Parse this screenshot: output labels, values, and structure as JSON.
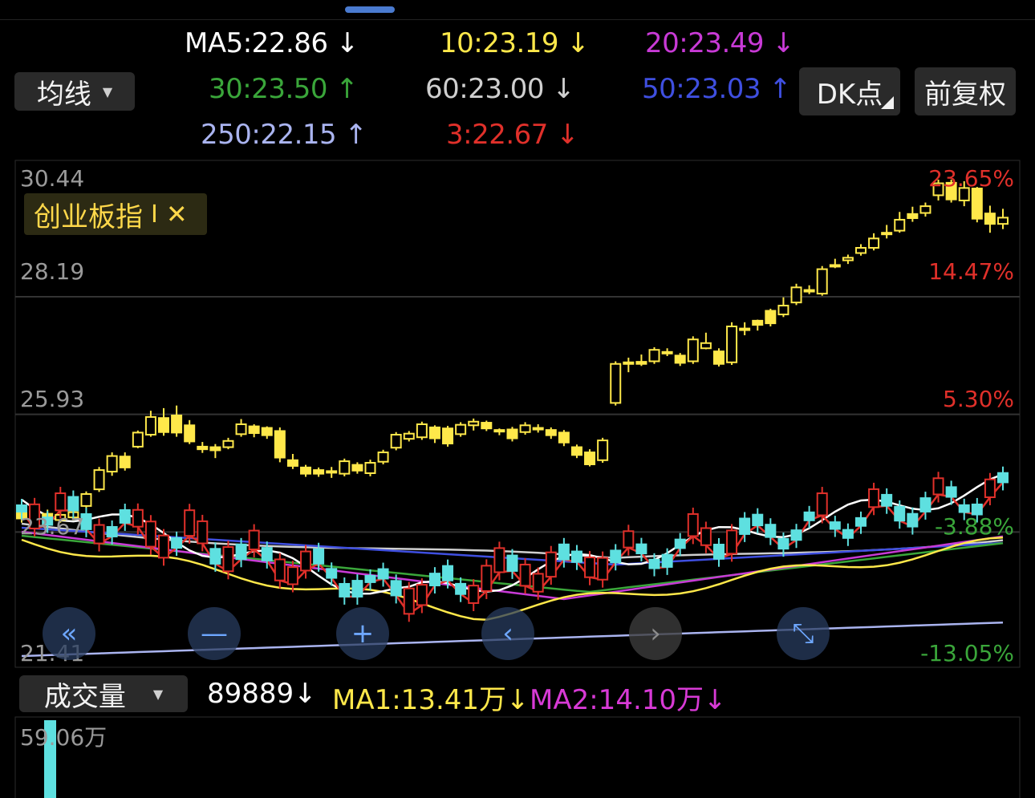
{
  "ma_panel": {
    "selector_label": "均线",
    "items": [
      {
        "text": "MA5:22.86",
        "arrow": "↓",
        "color": "#ffffff"
      },
      {
        "text": "10:23.19",
        "arrow": "↓",
        "color": "#ffe84a"
      },
      {
        "text": "20:23.49",
        "arrow": "↓",
        "color": "#c83ad6"
      },
      {
        "text": "30:23.50",
        "arrow": "↑",
        "color": "#3aa63a"
      },
      {
        "text": "60:23.00",
        "arrow": "↓",
        "color": "#cfcfcf"
      },
      {
        "text": "50:23.03",
        "arrow": "↑",
        "color": "#3f4fe0"
      },
      {
        "text": "250:22.15",
        "arrow": "↑",
        "color": "#aab4f0"
      },
      {
        "text": "3:22.67",
        "arrow": "↓",
        "color": "#e0302a"
      }
    ],
    "dk_button": "DK点",
    "fq_button": "前复权"
  },
  "price_chart": {
    "index_badge": "创业板指",
    "badge_sep": "I",
    "badge_close": "✕",
    "y_left_labels": [
      "30.44",
      "28.19",
      "25.93",
      "23.67",
      "21.41"
    ],
    "y_right_labels": [
      "23.65%",
      "14.47%",
      "5.30%",
      "-3.88%",
      "-13.05%"
    ]
  },
  "nav": {
    "icons": [
      "rewind-icon",
      "zoom-out-icon",
      "zoom-in-icon",
      "prev-icon",
      "next-icon",
      "fullscreen-icon"
    ]
  },
  "volume_panel": {
    "selector_label": "成交量",
    "value": "89889",
    "value_arrow": "↓",
    "ma1": "MA1:13.41万",
    "ma1_arrow": "↓",
    "ma2": "MA2:14.10万",
    "ma2_arrow": "↓",
    "max_label": "59.06万"
  },
  "colors": {
    "up": "#ffe84a",
    "down": "#ffe84a",
    "up_lower": "#e0302a",
    "down_lower": "#5ee0e0",
    "red_pct": "#e0302a",
    "green_pct": "#3aa63a"
  },
  "chart_data": [
    {
      "type": "candlestick",
      "series_name": "创业板指",
      "ylim": [
        21.41,
        30.44
      ],
      "y_ticks": [
        30.44,
        28.19,
        25.93,
        23.67,
        21.41
      ],
      "pct_ticks": [
        "23.65%",
        "14.47%",
        "5.30%",
        "-3.88%",
        "-13.05%"
      ],
      "candles": [
        [
          24.04,
          23.93,
          24.1,
          23.85
        ],
        [
          24.01,
          24.06,
          24.15,
          23.95
        ],
        [
          24.02,
          23.95,
          24.1,
          23.9
        ],
        [
          23.9,
          24.0,
          24.08,
          23.85
        ],
        [
          23.95,
          24.05,
          24.12,
          23.9
        ],
        [
          24.17,
          24.4,
          24.45,
          24.1
        ],
        [
          24.49,
          24.86,
          24.92,
          24.44
        ],
        [
          24.83,
          25.13,
          25.2,
          24.75
        ],
        [
          25.12,
          24.91,
          25.2,
          24.85
        ],
        [
          25.31,
          25.58,
          25.62,
          25.28
        ],
        [
          25.54,
          25.88,
          26.0,
          25.5
        ],
        [
          25.86,
          25.59,
          26.05,
          25.52
        ],
        [
          25.91,
          25.58,
          26.1,
          25.5
        ],
        [
          25.72,
          25.41,
          25.82,
          25.36
        ],
        [
          25.31,
          25.26,
          25.4,
          25.19
        ],
        [
          25.3,
          25.24,
          25.36,
          25.09
        ],
        [
          25.3,
          25.42,
          25.48,
          25.26
        ],
        [
          25.55,
          25.74,
          25.84,
          25.5
        ],
        [
          25.7,
          25.57,
          25.74,
          25.49
        ],
        [
          25.67,
          25.53,
          25.7,
          25.46
        ],
        [
          25.61,
          25.1,
          25.68,
          25.01
        ],
        [
          25.05,
          24.94,
          25.17,
          24.88
        ],
        [
          24.91,
          24.79,
          24.96,
          24.73
        ],
        [
          24.86,
          24.79,
          24.91,
          24.73
        ],
        [
          24.84,
          24.82,
          24.92,
          24.71
        ],
        [
          24.79,
          25.03,
          25.08,
          24.74
        ],
        [
          24.96,
          24.85,
          25.01,
          24.79
        ],
        [
          24.8,
          25.0,
          25.06,
          24.74
        ],
        [
          25.02,
          25.2,
          25.25,
          24.97
        ],
        [
          25.29,
          25.54,
          25.59,
          25.24
        ],
        [
          25.46,
          25.56,
          25.61,
          25.41
        ],
        [
          25.49,
          25.74,
          25.79,
          25.44
        ],
        [
          25.68,
          25.47,
          25.72,
          25.38
        ],
        [
          25.66,
          25.37,
          25.71,
          25.31
        ],
        [
          25.55,
          25.73,
          25.78,
          25.5
        ],
        [
          25.72,
          25.79,
          25.85,
          25.62
        ],
        [
          25.77,
          25.66,
          25.81,
          25.61
        ],
        [
          25.6,
          25.63,
          25.66,
          25.53
        ],
        [
          25.64,
          25.47,
          25.69,
          25.41
        ],
        [
          25.59,
          25.72,
          25.78,
          25.54
        ],
        [
          25.64,
          25.67,
          25.74,
          25.58
        ],
        [
          25.63,
          25.53,
          25.68,
          25.46
        ],
        [
          25.58,
          25.39,
          25.63,
          25.32
        ],
        [
          25.3,
          25.15,
          25.35,
          25.09
        ],
        [
          25.2,
          24.97,
          25.26,
          24.93
        ],
        [
          25.05,
          25.43,
          25.48,
          25.0
        ],
        [
          26.15,
          26.9,
          26.95,
          26.1
        ],
        [
          26.9,
          26.93,
          27.02,
          26.74
        ],
        [
          26.94,
          26.9,
          27.08,
          26.86
        ],
        [
          26.95,
          27.17,
          27.22,
          26.9
        ],
        [
          27.13,
          27.13,
          27.2,
          27.05
        ],
        [
          27.06,
          26.92,
          27.11,
          26.86
        ],
        [
          26.95,
          27.37,
          27.43,
          26.9
        ],
        [
          27.2,
          27.3,
          27.5,
          27.18
        ],
        [
          27.14,
          26.9,
          27.2,
          26.85
        ],
        [
          26.93,
          27.62,
          27.7,
          26.88
        ],
        [
          27.55,
          27.58,
          27.7,
          27.45
        ],
        [
          27.73,
          27.65,
          27.75,
          27.54
        ],
        [
          27.92,
          27.68,
          27.96,
          27.62
        ],
        [
          27.85,
          28.02,
          28.18,
          27.8
        ],
        [
          28.08,
          28.37,
          28.44,
          28.03
        ],
        [
          28.32,
          28.3,
          28.41,
          28.24
        ],
        [
          28.25,
          28.72,
          28.78,
          28.21
        ],
        [
          28.77,
          28.8,
          28.92,
          28.74
        ],
        [
          28.89,
          28.94,
          29.0,
          28.82
        ],
        [
          29.03,
          29.13,
          29.2,
          28.98
        ],
        [
          29.13,
          29.31,
          29.41,
          29.08
        ],
        [
          29.42,
          29.41,
          29.57,
          29.31
        ],
        [
          29.46,
          29.67,
          29.82,
          29.42
        ],
        [
          29.78,
          29.7,
          29.92,
          29.63
        ],
        [
          29.8,
          29.93,
          30.0,
          29.73
        ],
        [
          30.14,
          30.37,
          30.44,
          30.04
        ],
        [
          30.38,
          30.06,
          30.44,
          30.0
        ],
        [
          30.04,
          30.28,
          30.41,
          29.93
        ],
        [
          30.27,
          29.69,
          30.3,
          29.62
        ],
        [
          29.79,
          29.59,
          29.94,
          29.42
        ],
        [
          29.59,
          29.71,
          29.88,
          29.49
        ]
      ]
    },
    {
      "type": "line",
      "title": "均线",
      "series": [
        {
          "name": "MA5",
          "value": 22.86,
          "color": "#ffffff"
        },
        {
          "name": "10",
          "value": 23.19,
          "color": "#ffe84a"
        },
        {
          "name": "20",
          "value": 23.49,
          "color": "#c83ad6"
        },
        {
          "name": "30",
          "value": 23.5,
          "color": "#3aa63a"
        },
        {
          "name": "60",
          "value": 23.0,
          "color": "#cfcfcf"
        },
        {
          "name": "50",
          "value": 23.03,
          "color": "#3f4fe0"
        },
        {
          "name": "250",
          "value": 22.15,
          "color": "#aab4f0"
        },
        {
          "name": "3",
          "value": 22.67,
          "color": "#e0302a"
        }
      ]
    },
    {
      "type": "bar",
      "title": "成交量",
      "series": [
        {
          "name": "成交量",
          "values": [
            590600
          ]
        }
      ],
      "max_label": "59.06万"
    }
  ]
}
